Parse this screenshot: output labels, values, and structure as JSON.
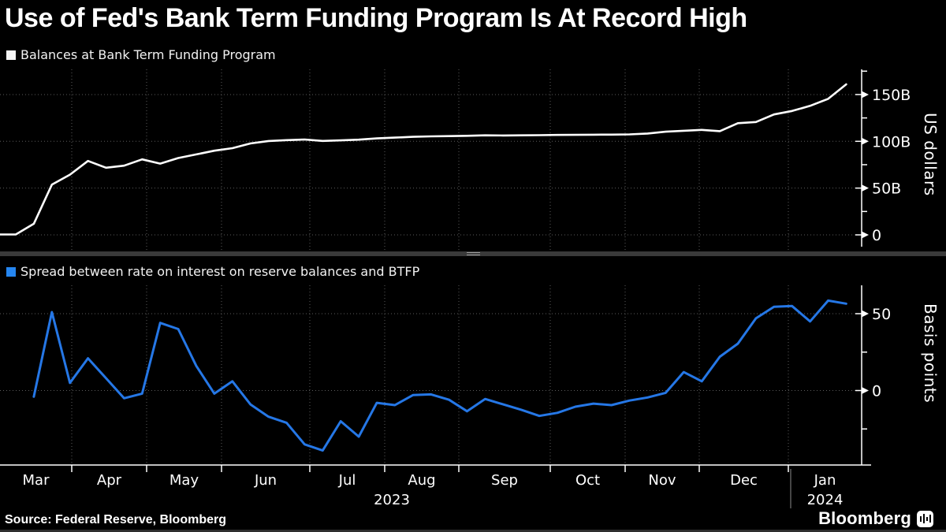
{
  "header": {
    "title": "Use of Fed's Bank Term Funding Program Is At Record High"
  },
  "footer": {
    "source": "Source: Federal Reserve, Bloomberg",
    "logo_text": "Bloomberg"
  },
  "colors": {
    "background": "#000000",
    "white_line": "#ffffff",
    "blue_line": "#2577e6",
    "grid": "#5c5c5c",
    "axis": "#ffffff",
    "divider": "#3a3a3a",
    "divider_handle": "#9d9d9d",
    "text": "#ffffff"
  },
  "x_axis": {
    "month_labels": [
      "Mar",
      "Apr",
      "May",
      "Jun",
      "Jul",
      "Aug",
      "Sep",
      "Oct",
      "Nov",
      "Dec",
      "Jan"
    ],
    "year_left": "2023",
    "year_right": "2024"
  },
  "chart_data": [
    {
      "type": "line",
      "panel": "top",
      "legend": "Balances at Bank Term Funding Program",
      "ylabel": "US dollars",
      "x_frequency": "weekly",
      "x_range_visible": "Mar 2023 - Jan 2024",
      "grid": true,
      "legend_position": "top-left",
      "ylim": [
        -12,
        177
      ],
      "yticks": [
        {
          "value": 0,
          "label": "0"
        },
        {
          "value": 50,
          "label": "50B"
        },
        {
          "value": 100,
          "label": "100B"
        },
        {
          "value": 150,
          "label": "150B"
        }
      ],
      "minor_yticks": [
        25,
        75,
        125,
        175
      ],
      "series": [
        {
          "name": "BTFP balances (billions USD)",
          "color_key": "white_line",
          "values": [
            0.4,
            11.9,
            53.7,
            64.4,
            79.0,
            71.8,
            74.0,
            80.7,
            76.2,
            82.1,
            86.0,
            90.0,
            92.7,
            97.7,
            100.3,
            101.3,
            101.9,
            100.4,
            101.0,
            101.8,
            103.1,
            104.0,
            104.8,
            105.3,
            105.6,
            105.9,
            106.4,
            106.2,
            106.4,
            106.6,
            106.8,
            106.9,
            107.1,
            107.2,
            107.4,
            108.3,
            110.3,
            111.3,
            112.2,
            110.9,
            119.4,
            120.6,
            128.7,
            132.4,
            137.9,
            145.4,
            160.9
          ]
        }
      ]
    },
    {
      "type": "line",
      "panel": "bottom",
      "legend": "Spread between rate on interest on reserve balances and BTFP",
      "ylabel": "Basis points",
      "x_frequency": "weekly",
      "x_range_visible": "Mar 2023 - Jan 2024",
      "grid": true,
      "legend_position": "top-left",
      "ylim": [
        -49.5,
        68.5
      ],
      "yticks": [
        {
          "value": 0,
          "label": "0"
        },
        {
          "value": 50,
          "label": "50"
        }
      ],
      "minor_yticks": [
        -25,
        25
      ],
      "series": [
        {
          "name": "IORB minus BTFP rate (basis points)",
          "color_key": "blue_line",
          "values": [
            null,
            -4,
            51,
            5,
            21,
            8,
            -5,
            -2,
            44,
            40,
            16,
            -2,
            6,
            -9,
            -17,
            -21,
            -35,
            -39,
            -20,
            -30,
            -8,
            -9.5,
            -3,
            -2.5,
            -6,
            -13.5,
            -5.5,
            -9,
            -12.5,
            -16.5,
            -14.5,
            -10.5,
            -8.5,
            -9.5,
            -6.5,
            -4.5,
            -1.5,
            12,
            6,
            22,
            30.5,
            47,
            54.5,
            55,
            45,
            58.5,
            56.5
          ]
        }
      ]
    }
  ]
}
